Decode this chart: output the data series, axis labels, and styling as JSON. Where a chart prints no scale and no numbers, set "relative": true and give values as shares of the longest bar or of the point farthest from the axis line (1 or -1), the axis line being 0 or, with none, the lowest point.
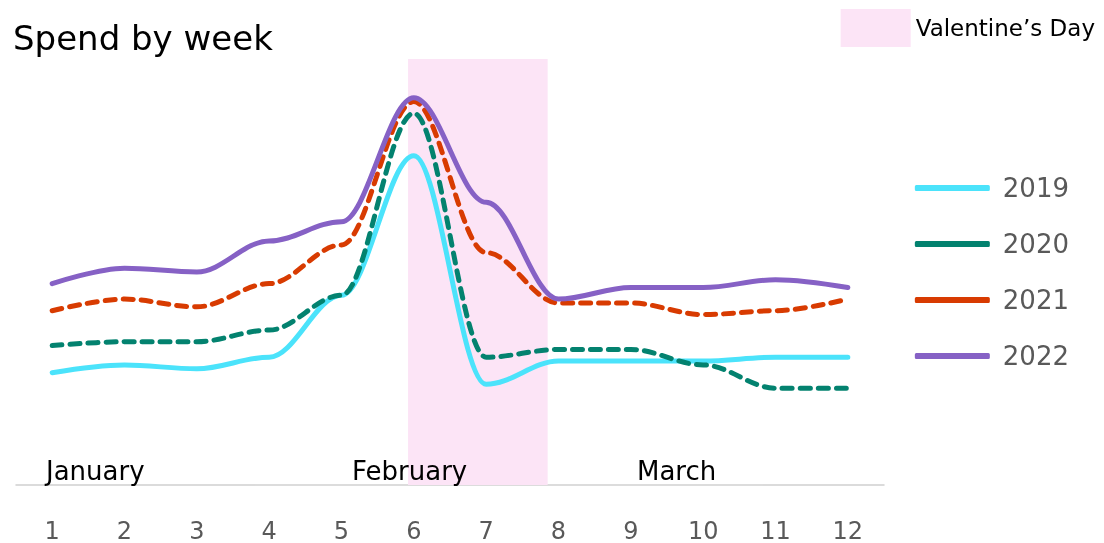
{
  "chart_data": {
    "type": "line",
    "title": "Spend by week",
    "relative": true,
    "x": [
      1,
      2,
      3,
      4,
      5,
      6,
      7,
      8,
      9,
      10,
      11,
      12
    ],
    "xlim": [
      0.5,
      12.5
    ],
    "xticks": [
      1,
      2,
      3,
      4,
      5,
      6,
      7,
      8,
      9,
      10,
      11,
      12
    ],
    "series": [
      {
        "name": "2019",
        "color": "#4be3fb",
        "line_style": "solid",
        "values": [
          0.29,
          0.31,
          0.3,
          0.33,
          0.49,
          0.85,
          0.26,
          0.32,
          0.32,
          0.32,
          0.33,
          0.33
        ]
      },
      {
        "name": "2020",
        "color": "#03826f",
        "line_style": "dashed",
        "values": [
          0.36,
          0.37,
          0.37,
          0.4,
          0.49,
          0.96,
          0.33,
          0.35,
          0.35,
          0.31,
          0.25,
          0.25
        ]
      },
      {
        "name": "2021",
        "color": "#d83b01",
        "line_style": "dashed",
        "values": [
          0.45,
          0.48,
          0.46,
          0.52,
          0.62,
          0.99,
          0.6,
          0.47,
          0.47,
          0.44,
          0.45,
          0.48
        ]
      },
      {
        "name": "2022",
        "color": "#8661c5",
        "line_style": "solid",
        "values": [
          0.52,
          0.56,
          0.55,
          0.63,
          0.68,
          1,
          0.73,
          0.48,
          0.51,
          0.51,
          0.53,
          0.51
        ]
      }
    ],
    "bands": [
      {
        "axis": "x",
        "from": 5.92,
        "to": 7.85,
        "label": "Valentine’s Day",
        "color": "#fce4f6"
      }
    ],
    "annotations": [
      "January",
      "February",
      "March"
    ],
    "legend": "right",
    "marker": "none",
    "grid": false
  }
}
